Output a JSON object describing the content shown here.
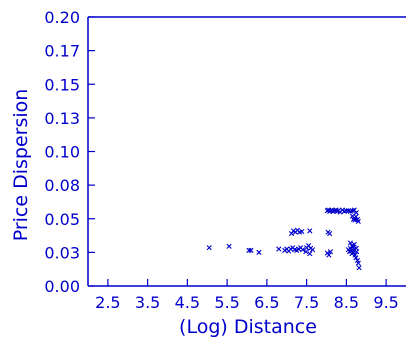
{
  "chart_data": {
    "type": "scatter",
    "title": "",
    "xlabel": "(Log) Distance",
    "ylabel": "Price Dispersion",
    "xlim": [
      2.0,
      10.0
    ],
    "ylim": [
      0.0,
      0.2
    ],
    "x_ticks": [
      2.5,
      3.5,
      4.5,
      5.5,
      6.5,
      7.5,
      8.5,
      9.5
    ],
    "x_tick_labels": [
      "2.5",
      "3.5",
      "4.5",
      "5.5",
      "6.5",
      "7.5",
      "8.5",
      "9.5"
    ],
    "y_ticks": [
      0.0,
      0.025,
      0.05,
      0.075,
      0.1,
      0.125,
      0.15,
      0.175,
      0.2
    ],
    "y_tick_labels": [
      "0.00",
      "0.03",
      "0.05",
      "0.08",
      "0.10",
      "0.13",
      "0.15",
      "0.17",
      "0.20"
    ],
    "grid": false,
    "marker": "x",
    "color": "#0000cc",
    "points": [
      [
        5.05,
        0.0285
      ],
      [
        5.55,
        0.0295
      ],
      [
        6.05,
        0.0265
      ],
      [
        6.1,
        0.0265
      ],
      [
        6.3,
        0.025
      ],
      [
        6.8,
        0.0275
      ],
      [
        6.95,
        0.0265
      ],
      [
        7.0,
        0.0275
      ],
      [
        7.05,
        0.026
      ],
      [
        7.1,
        0.0275
      ],
      [
        7.15,
        0.0285
      ],
      [
        7.2,
        0.027
      ],
      [
        7.25,
        0.0265
      ],
      [
        7.3,
        0.0275
      ],
      [
        7.35,
        0.0285
      ],
      [
        7.4,
        0.027
      ],
      [
        7.5,
        0.0285
      ],
      [
        7.55,
        0.03
      ],
      [
        7.6,
        0.028
      ],
      [
        7.65,
        0.027
      ],
      [
        7.48,
        0.0255
      ],
      [
        7.58,
        0.024
      ],
      [
        7.12,
        0.039
      ],
      [
        7.17,
        0.041
      ],
      [
        7.22,
        0.04
      ],
      [
        7.27,
        0.0415
      ],
      [
        7.32,
        0.04
      ],
      [
        7.38,
        0.0405
      ],
      [
        7.58,
        0.041
      ],
      [
        8.02,
        0.0245
      ],
      [
        8.06,
        0.023
      ],
      [
        8.1,
        0.0255
      ],
      [
        8.04,
        0.04
      ],
      [
        8.08,
        0.039
      ],
      [
        8.02,
        0.056
      ],
      [
        8.05,
        0.0565
      ],
      [
        8.08,
        0.0555
      ],
      [
        8.1,
        0.056
      ],
      [
        8.13,
        0.0565
      ],
      [
        8.16,
        0.0555
      ],
      [
        8.2,
        0.056
      ],
      [
        8.24,
        0.0565
      ],
      [
        8.27,
        0.0555
      ],
      [
        8.3,
        0.056
      ],
      [
        8.34,
        0.055
      ],
      [
        8.4,
        0.0565
      ],
      [
        8.45,
        0.0555
      ],
      [
        8.5,
        0.056
      ],
      [
        8.55,
        0.056
      ],
      [
        8.6,
        0.0555
      ],
      [
        8.65,
        0.056
      ],
      [
        8.7,
        0.0565
      ],
      [
        8.75,
        0.0545
      ],
      [
        8.65,
        0.052
      ],
      [
        8.7,
        0.0505
      ],
      [
        8.72,
        0.049
      ],
      [
        8.78,
        0.0495
      ],
      [
        8.8,
        0.048
      ],
      [
        8.68,
        0.0495
      ],
      [
        8.74,
        0.0515
      ],
      [
        8.55,
        0.027
      ],
      [
        8.58,
        0.0255
      ],
      [
        8.6,
        0.028
      ],
      [
        8.62,
        0.026
      ],
      [
        8.64,
        0.024
      ],
      [
        8.66,
        0.029
      ],
      [
        8.68,
        0.025
      ],
      [
        8.7,
        0.027
      ],
      [
        8.72,
        0.023
      ],
      [
        8.74,
        0.021
      ],
      [
        8.76,
        0.0255
      ],
      [
        8.78,
        0.019
      ],
      [
        8.8,
        0.017
      ],
      [
        8.82,
        0.0135
      ],
      [
        8.6,
        0.032
      ],
      [
        8.65,
        0.03
      ],
      [
        8.7,
        0.031
      ],
      [
        8.75,
        0.028
      ]
    ]
  }
}
